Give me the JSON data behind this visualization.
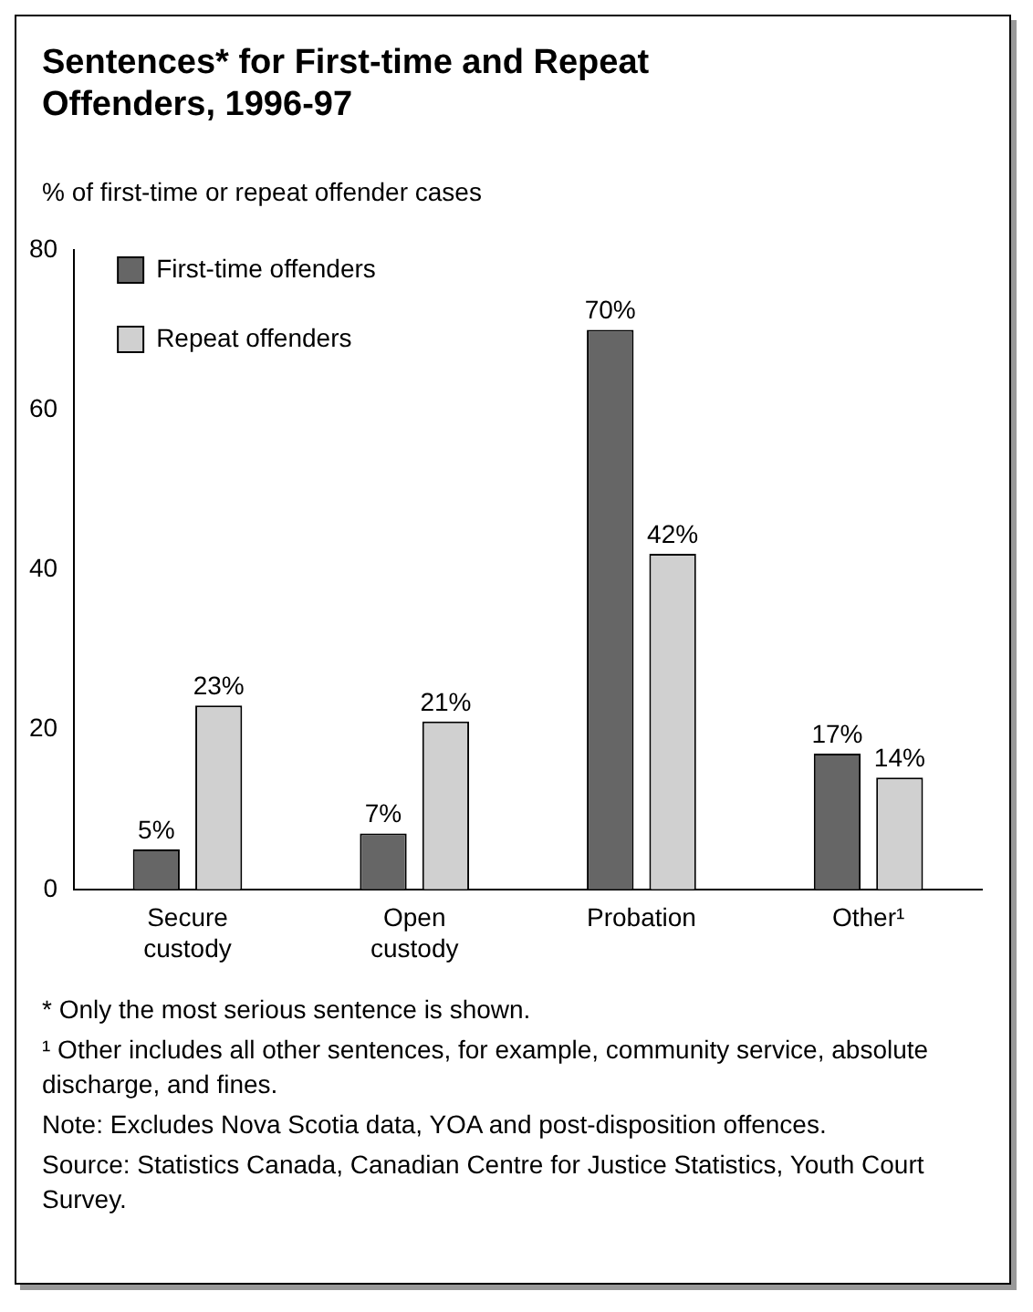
{
  "chart_data": {
    "type": "bar",
    "title": "Sentences* for First-time and Repeat Offenders, 1996-97",
    "ylabel": "% of first-time or repeat offender cases",
    "categories": [
      "Secure custody",
      "Open custody",
      "Probation",
      "Other¹"
    ],
    "series": [
      {
        "name": "First-time offenders",
        "color": "#666666",
        "values": [
          5,
          7,
          70,
          17
        ],
        "value_labels": [
          "5%",
          "7%",
          "70%",
          "17%"
        ]
      },
      {
        "name": "Repeat offenders",
        "color": "#d0d0d0",
        "values": [
          23,
          21,
          42,
          14
        ],
        "value_labels": [
          "23%",
          "21%",
          "42%",
          "14%"
        ]
      }
    ],
    "ylim": [
      0,
      80
    ],
    "yticks": [
      0,
      20,
      40,
      60,
      80
    ],
    "grid": false,
    "legend": "top left",
    "annotations": [
      "* Only the most serious sentence is shown.",
      "¹ Other includes all other sentences, for example, community service, absolute discharge, and fines.",
      "Note: Excludes Nova Scotia data, YOA and post-disposition offences.",
      "Source: Statistics Canada, Canadian Centre for Justice Statistics, Youth Court Survey."
    ]
  }
}
